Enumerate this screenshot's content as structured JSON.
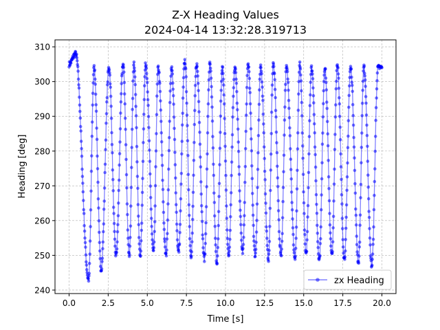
{
  "chart_data": {
    "type": "line",
    "title": "Z-X Heading Values",
    "subtitle": "2024-04-14 13:32:28.319713",
    "xlabel": "Time [s]",
    "ylabel": "Heading [deg]",
    "xlim": [
      -0.9,
      20.9
    ],
    "ylim": [
      239,
      312
    ],
    "xticks": [
      0.0,
      2.5,
      5.0,
      7.5,
      10.0,
      12.5,
      15.0,
      17.5,
      20.0
    ],
    "xtick_labels": [
      "0.0",
      "2.5",
      "5.0",
      "7.5",
      "10.0",
      "12.5",
      "15.0",
      "17.5",
      "20.0"
    ],
    "yticks": [
      240,
      250,
      260,
      270,
      280,
      290,
      300,
      310
    ],
    "ytick_labels": [
      "240",
      "250",
      "260",
      "270",
      "280",
      "290",
      "300",
      "310"
    ],
    "grid": true,
    "legend_position": "bottom-right",
    "series": [
      {
        "name": "zx Heading",
        "color": "#0000ff",
        "marker": "circle",
        "duration": 20.0,
        "start_value": 305,
        "initial_peak": 308,
        "cycles": [
          {
            "t_low": 1.25,
            "low": 243,
            "t_high": 1.6,
            "high": 304
          },
          {
            "t_low": 2.05,
            "low": 246,
            "t_high": 2.55,
            "high": 304
          },
          {
            "t_low": 3.0,
            "low": 250,
            "t_high": 3.45,
            "high": 305
          },
          {
            "t_low": 3.85,
            "low": 250,
            "t_high": 4.15,
            "high": 305
          },
          {
            "t_low": 4.55,
            "low": 250,
            "t_high": 4.9,
            "high": 305
          },
          {
            "t_low": 5.4,
            "low": 251,
            "t_high": 5.7,
            "high": 304
          },
          {
            "t_low": 6.2,
            "low": 250,
            "t_high": 6.55,
            "high": 304
          },
          {
            "t_low": 7.0,
            "low": 251,
            "t_high": 7.4,
            "high": 306
          },
          {
            "t_low": 7.8,
            "low": 250,
            "t_high": 8.15,
            "high": 305
          },
          {
            "t_low": 8.65,
            "low": 249,
            "t_high": 9.0,
            "high": 305
          },
          {
            "t_low": 9.45,
            "low": 248,
            "t_high": 9.8,
            "high": 304
          },
          {
            "t_low": 10.2,
            "low": 250,
            "t_high": 10.6,
            "high": 304
          },
          {
            "t_low": 11.1,
            "low": 251,
            "t_high": 11.45,
            "high": 305
          },
          {
            "t_low": 11.9,
            "low": 250,
            "t_high": 12.25,
            "high": 304
          },
          {
            "t_low": 12.75,
            "low": 249,
            "t_high": 13.05,
            "high": 305
          },
          {
            "t_low": 13.55,
            "low": 250,
            "t_high": 13.9,
            "high": 304
          },
          {
            "t_low": 14.45,
            "low": 249,
            "t_high": 14.75,
            "high": 305
          },
          {
            "t_low": 15.15,
            "low": 250,
            "t_high": 15.5,
            "high": 304
          },
          {
            "t_low": 16.0,
            "low": 249,
            "t_high": 16.35,
            "high": 304
          },
          {
            "t_low": 16.8,
            "low": 250,
            "t_high": 17.15,
            "high": 305
          },
          {
            "t_low": 17.6,
            "low": 249,
            "t_high": 18.0,
            "high": 304
          },
          {
            "t_low": 18.5,
            "low": 248,
            "t_high": 18.85,
            "high": 304
          },
          {
            "t_low": 19.35,
            "low": 247,
            "t_high": 19.75,
            "high": 304
          }
        ],
        "end_value": 304
      }
    ]
  }
}
